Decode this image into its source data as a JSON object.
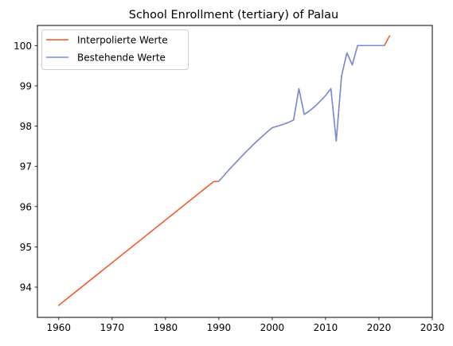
{
  "chart_data": {
    "type": "line",
    "title": "School Enrollment (tertiary) of Palau",
    "xlabel": "",
    "ylabel": "",
    "xlim": [
      1956,
      2030
    ],
    "ylim": [
      93.25,
      100.5
    ],
    "xticks": [
      1960,
      1970,
      1980,
      1990,
      2000,
      2010,
      2020,
      2030
    ],
    "yticks": [
      94,
      95,
      96,
      97,
      98,
      99,
      100
    ],
    "grid": false,
    "legend_position": "top-left",
    "series": [
      {
        "name": "Interpolierte Werte",
        "color": "#f4511e",
        "x": [
          1960,
          1989,
          1990,
          1991,
          1992,
          1993,
          1994,
          1995,
          1996,
          1997,
          1998,
          1999,
          2000,
          2001,
          2002,
          2003,
          2004,
          2005,
          2006,
          2007,
          2008,
          2009,
          2010,
          2011,
          2012,
          2013,
          2014,
          2015,
          2016,
          2017,
          2018,
          2019,
          2020,
          2021,
          2022
        ],
        "y": [
          93.55,
          96.62,
          96.63,
          96.78,
          96.93,
          97.07,
          97.21,
          97.35,
          97.48,
          97.61,
          97.73,
          97.85,
          97.96,
          98.0,
          98.04,
          98.09,
          98.15,
          98.93,
          98.29,
          98.38,
          98.49,
          98.62,
          98.76,
          98.93,
          97.63,
          99.25,
          99.82,
          99.52,
          100.0,
          100.0,
          100.0,
          100.0,
          100.0,
          100.0,
          100.24
        ]
      },
      {
        "name": "Bestehende Werte",
        "color": "#6d8fe0",
        "x": [
          1990,
          1991,
          1992,
          1993,
          1994,
          1995,
          1996,
          1997,
          1998,
          1999,
          2000,
          2001,
          2002,
          2003,
          2004,
          2005,
          2006,
          2007,
          2008,
          2009,
          2010,
          2011,
          2012,
          2013,
          2014,
          2015,
          2016,
          2017,
          2018,
          2019,
          2020,
          2021
        ],
        "y": [
          96.63,
          96.78,
          96.93,
          97.07,
          97.21,
          97.35,
          97.48,
          97.61,
          97.73,
          97.85,
          97.96,
          98.0,
          98.04,
          98.09,
          98.15,
          98.93,
          98.29,
          98.38,
          98.49,
          98.62,
          98.76,
          98.93,
          97.63,
          99.25,
          99.82,
          99.52,
          100.0,
          100.0,
          100.0,
          100.0,
          100.0,
          100.0
        ]
      }
    ]
  }
}
